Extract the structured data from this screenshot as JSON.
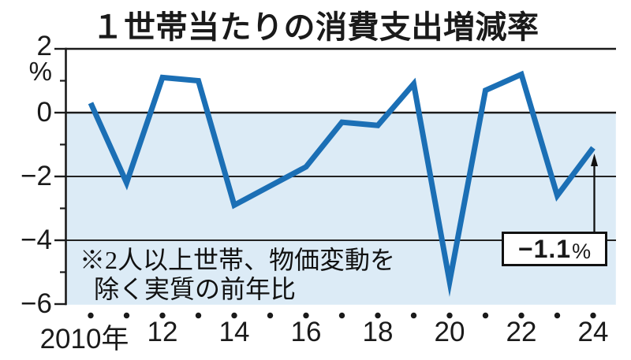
{
  "chart_data": {
    "type": "line",
    "title": "１世帯当たりの消費支出増減率",
    "x": [
      2010,
      2011,
      2012,
      2013,
      2014,
      2015,
      2016,
      2017,
      2018,
      2019,
      2020,
      2021,
      2022,
      2023,
      2024
    ],
    "values": [
      0.3,
      -2.2,
      1.1,
      1.0,
      -2.9,
      -2.3,
      -1.7,
      -0.3,
      -0.4,
      0.9,
      -5.3,
      0.7,
      1.2,
      -2.6,
      -1.1
    ],
    "ylim": [
      -6,
      2
    ],
    "ylabel_unit": "%",
    "y_tick_labels": [
      "2",
      "0",
      "−2",
      "−4",
      "−6"
    ],
    "x_tick_labels": [
      "2010年",
      "12",
      "14",
      "16",
      "18",
      "20",
      "22",
      "24"
    ],
    "note_line1": "※2人以上世帯、物価変動を",
    "note_line2": "除く実質の前年比",
    "callout": {
      "value": "−1.1",
      "unit": "%"
    },
    "line_color": "#1b6fb5",
    "area_color": "#dcebf6",
    "grid": "horizontal lines at 2, 0, -2, -4; shaded band below 0; year dots on x-axis",
    "legend": "none"
  }
}
